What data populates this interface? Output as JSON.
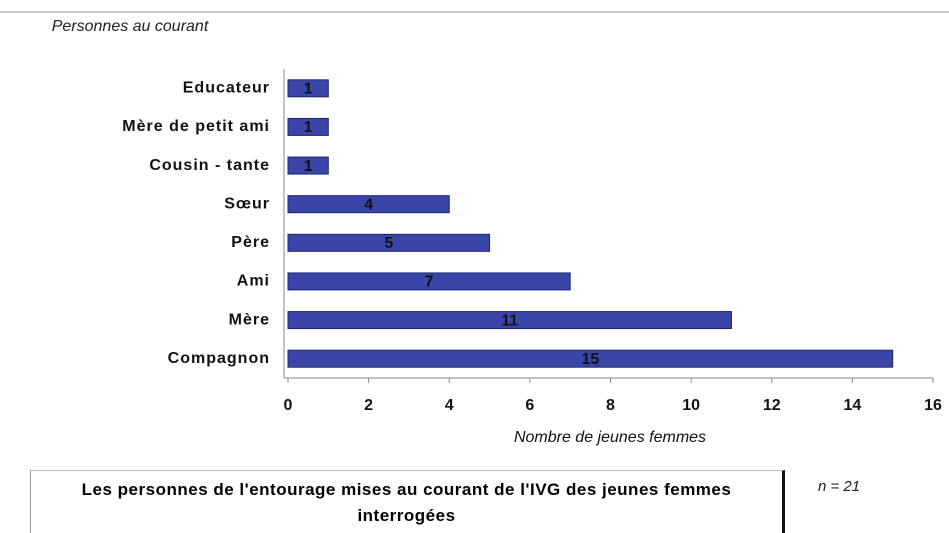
{
  "chart_data": {
    "type": "bar",
    "orientation": "horizontal",
    "y_label": "Personnes au courant",
    "x_label": "Nombre de jeunes femmes",
    "caption": "Les personnes de l'entourage mises au courant de l'IVG des jeunes femmes interrogées",
    "note": "n = 21",
    "categories": [
      "Educateur",
      "Mère de petit ami",
      "Cousin - tante",
      "Sœur",
      "Père",
      "Ami",
      "Mère",
      "Compagnon"
    ],
    "values": [
      1,
      1,
      1,
      4,
      5,
      7,
      11,
      15
    ],
    "color": "#3a45a8",
    "xlim": [
      0,
      16
    ],
    "xticks": [
      0,
      2,
      4,
      6,
      8,
      10,
      12,
      14,
      16
    ]
  }
}
